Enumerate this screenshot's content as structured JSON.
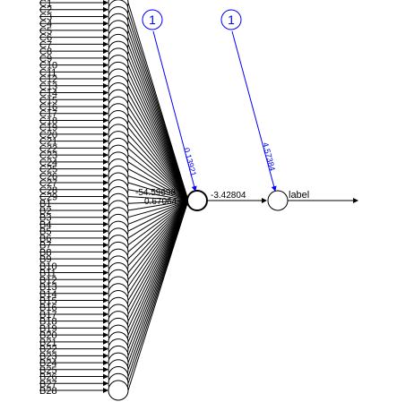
{
  "diagram": {
    "type": "neural-network",
    "input_labels": [
      "C1",
      "C2",
      "C3",
      "C4",
      "C5",
      "C6",
      "C7",
      "C8",
      "C9",
      "C10",
      "C11",
      "C12",
      "C13",
      "C14",
      "C15",
      "C16",
      "C17",
      "C18",
      "C19",
      "C20",
      "C21",
      "C22",
      "C23",
      "C24",
      "C25",
      "C26",
      "C27",
      "C28",
      "C29",
      "B1",
      "B2",
      "B3",
      "B4",
      "B5",
      "B6",
      "B7",
      "B8",
      "B9",
      "B10",
      "B11",
      "B12",
      "B13",
      "B14",
      "B15",
      "B16",
      "B17",
      "B18",
      "B19",
      "B20",
      "B21",
      "B22",
      "B23",
      "B24",
      "B25",
      "B26",
      "B27",
      "B28"
    ],
    "bias_hidden_label": "1",
    "bias_output_label": "1",
    "bias_hidden_weight": "0.13921",
    "bias_output_weight": "4.57384",
    "hidden_to_output_weight": "-3.42804",
    "output_label": "label",
    "visible_weight_labels": [
      "-54.59698",
      "0.67064"
    ],
    "colors": {
      "network": "#000000",
      "bias": "#0000ff",
      "background": "#ffffff"
    }
  }
}
